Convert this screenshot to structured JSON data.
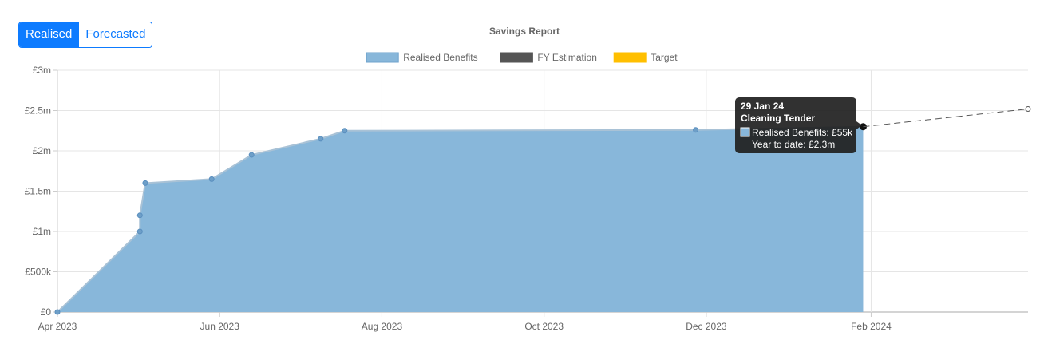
{
  "toggle": {
    "realised_label": "Realised",
    "forecasted_label": "Forecasted",
    "active": "Realised"
  },
  "chart_data": {
    "type": "area",
    "title": "Savings Report",
    "legend": [
      {
        "label": "Realised Benefits",
        "color": "#88b7da"
      },
      {
        "label": "FY Estimation",
        "color": "#555555"
      },
      {
        "label": "Target",
        "color": "#ffbf00"
      }
    ],
    "legend_position": "top",
    "grid": true,
    "y_ticks": [
      "£0",
      "£500k",
      "£1m",
      "£1.5m",
      "£2m",
      "£2.5m",
      "£3m"
    ],
    "ylim": [
      0,
      3000000
    ],
    "x_ticks": [
      {
        "label": "Apr 2023",
        "date": "2023-04-01"
      },
      {
        "label": "Jun 2023",
        "date": "2023-06-01"
      },
      {
        "label": "Aug 2023",
        "date": "2023-08-01"
      },
      {
        "label": "Oct 2023",
        "date": "2023-10-01"
      },
      {
        "label": "Dec 2023",
        "date": "2023-12-01"
      },
      {
        "label": "Feb 2024",
        "date": "2024-02-01"
      }
    ],
    "xlim": [
      "2023-04-01",
      "2024-03-31"
    ],
    "series": [
      {
        "name": "Realised Benefits",
        "color": "#88b7da",
        "points": [
          {
            "x": "2023-04-01",
            "y": 0
          },
          {
            "x": "2023-05-02",
            "y": 1000000
          },
          {
            "x": "2023-05-02",
            "y": 1200000
          },
          {
            "x": "2023-05-04",
            "y": 1600000
          },
          {
            "x": "2023-05-29",
            "y": 1650000
          },
          {
            "x": "2023-06-13",
            "y": 1950000
          },
          {
            "x": "2023-07-09",
            "y": 2150000
          },
          {
            "x": "2023-07-18",
            "y": 2250000
          },
          {
            "x": "2023-11-27",
            "y": 2260000
          },
          {
            "x": "2024-01-29",
            "y": 2300000
          }
        ]
      },
      {
        "name": "FY Estimation",
        "color": "#555555",
        "dashed": true,
        "points": [
          {
            "x": "2024-01-29",
            "y": 2300000
          },
          {
            "x": "2024-03-31",
            "y": 2520000
          }
        ]
      }
    ],
    "tooltip": {
      "date": "29 Jan 24",
      "title": "Cleaning Tender",
      "line1": "Realised Benefits: £55k",
      "line2": "Year to date: £2.3m"
    }
  }
}
